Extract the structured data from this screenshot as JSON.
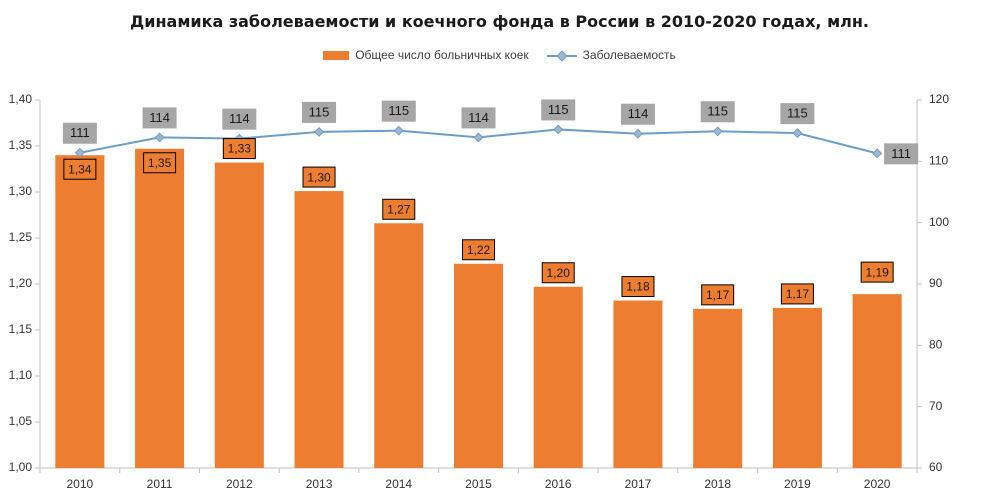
{
  "chart_data": {
    "type": "bar+line",
    "title": "Динамика заболеваемости и коечного фонда в России в 2010-2020 годах, млн.",
    "categories": [
      "2010",
      "2011",
      "2012",
      "2013",
      "2014",
      "2015",
      "2016",
      "2017",
      "2018",
      "2019",
      "2020"
    ],
    "series": [
      {
        "name": "Общее число больничных коек",
        "type": "bar",
        "axis": "left",
        "color": "#ED7D31",
        "values": [
          1.34,
          1.347,
          1.332,
          1.301,
          1.266,
          1.222,
          1.197,
          1.182,
          1.173,
          1.174,
          1.189
        ],
        "labels": [
          "1,34",
          "1,35",
          "1,33",
          "1,30",
          "1,27",
          "1,22",
          "1,20",
          "1,18",
          "1,17",
          "1,17",
          "1,19"
        ]
      },
      {
        "name": "Заболеваемость",
        "type": "line",
        "axis": "right",
        "color": "#6D9DC5",
        "values": [
          111.4,
          113.9,
          113.7,
          114.8,
          115.0,
          113.9,
          115.2,
          114.5,
          114.9,
          114.6,
          111.3
        ],
        "labels": [
          "111",
          "114",
          "114",
          "115",
          "115",
          "114",
          "115",
          "114",
          "115",
          "115",
          "111"
        ]
      }
    ],
    "y_left": {
      "min": 1.0,
      "max": 1.4,
      "ticks": [
        "1,00",
        "1,05",
        "1,10",
        "1,15",
        "1,20",
        "1,25",
        "1,30",
        "1,35",
        "1,40"
      ]
    },
    "y_right": {
      "min": 60,
      "max": 120,
      "ticks": [
        "60",
        "70",
        "80",
        "90",
        "100",
        "110",
        "120"
      ]
    },
    "legend_position": "top",
    "grid": false
  },
  "colors": {
    "bar": "#ED7D31",
    "line": "#6D9DC5",
    "marker_fill": "#9DB7CF",
    "line_label_bg": "#A6A6A6",
    "bar_label_bg": "#ED7D31",
    "bar_label_border": "#000000",
    "axis": "#BFBFBF"
  }
}
